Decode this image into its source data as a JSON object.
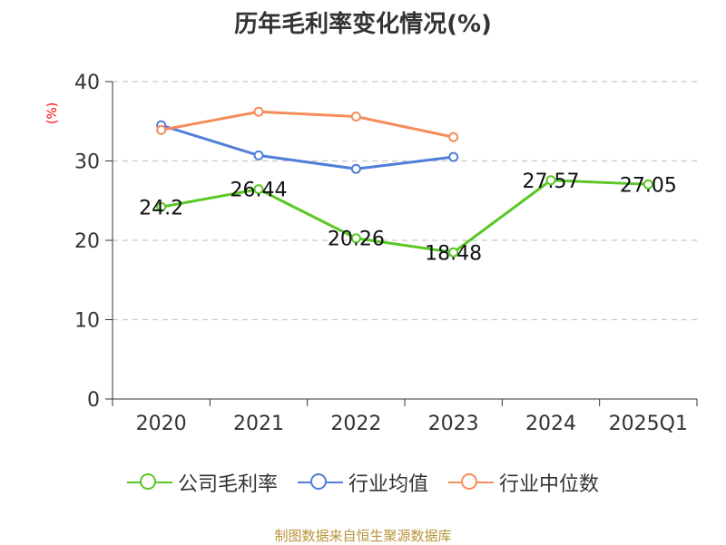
{
  "title": "历年毛利率变化情况(%)",
  "source": "制图数据来自恒生聚源数据库",
  "chart_data": {
    "type": "line",
    "title": "历年毛利率变化情况(%)",
    "ylabel": "(%)",
    "ylim": [
      0,
      40
    ],
    "yticks": [
      0,
      10,
      20,
      30,
      40
    ],
    "categories": [
      "2020",
      "2021",
      "2022",
      "2023",
      "2024",
      "2025Q1"
    ],
    "grid": true,
    "legend_position": "bottom",
    "series": [
      {
        "name": "公司毛利率",
        "color": "#5ac725",
        "values": [
          24.2,
          26.44,
          20.26,
          18.48,
          27.57,
          27.05
        ],
        "labels": [
          "24.2",
          "26.44",
          "20.26",
          "18.48",
          "27.57",
          "27.05"
        ]
      },
      {
        "name": "行业均值",
        "color": "#4f7fd8",
        "values": [
          34.5,
          30.7,
          29.0,
          30.5,
          null,
          null
        ]
      },
      {
        "name": "行业中位数",
        "color": "#f58d5a",
        "values": [
          33.9,
          36.2,
          35.6,
          33.0,
          null,
          null
        ]
      }
    ]
  }
}
